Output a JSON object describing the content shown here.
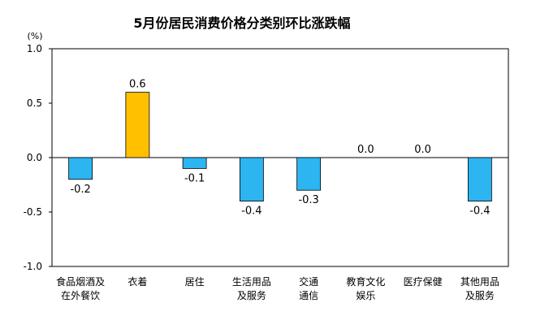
{
  "chart_data": {
    "type": "bar",
    "title": "5月份居民消费价格分类别环比涨跌幅",
    "ylabel": "(%)",
    "ylim": [
      -1.0,
      1.0
    ],
    "yticks": [
      "1.0",
      "0.5",
      "0.0",
      "-0.5",
      "-1.0"
    ],
    "ytick_values": [
      1.0,
      0.5,
      0.0,
      -0.5,
      -1.0
    ],
    "categories": [
      [
        "食品烟酒及",
        "在外餐饮"
      ],
      [
        "衣着"
      ],
      [
        "居住"
      ],
      [
        "生活用品",
        "及服务"
      ],
      [
        "交通",
        "通信"
      ],
      [
        "教育文化",
        "娱乐"
      ],
      [
        "医疗保健"
      ],
      [
        "其他用品",
        "及服务"
      ]
    ],
    "values": [
      -0.2,
      0.6,
      -0.1,
      -0.4,
      -0.3,
      0.0,
      0.0,
      -0.4
    ],
    "value_labels": [
      "-0.2",
      "0.6",
      "-0.1",
      "-0.4",
      "-0.3",
      "0.0",
      "0.0",
      "-0.4"
    ],
    "grid": false,
    "legend": "none",
    "colors": {
      "positive": "#ffc000",
      "negative": "#2cb5f0",
      "axis": "#000000",
      "text": "#000000"
    }
  }
}
